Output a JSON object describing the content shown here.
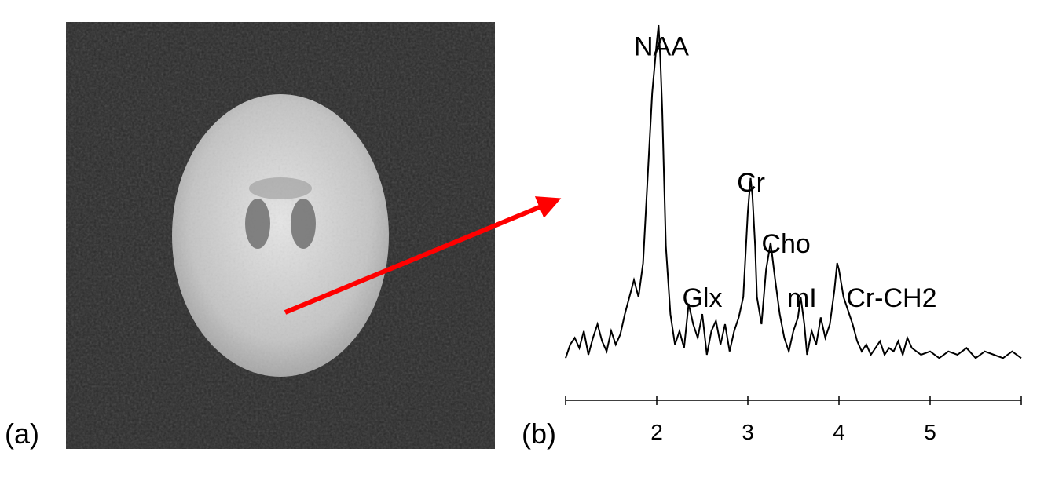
{
  "panels": {
    "a_label": "(a)",
    "b_label": "(b)"
  },
  "colors": {
    "arrow": "#ff0000",
    "spectrum": "#000000",
    "image_background": "#2a2a2a",
    "brain_tissue": "#d9d9d9"
  },
  "chart_data": {
    "type": "line",
    "title": "",
    "xlabel": "",
    "ylabel": "",
    "xlim": [
      1.0,
      6.0
    ],
    "x_ticks": [
      1,
      2,
      3,
      4,
      5,
      6
    ],
    "x_tick_labels": [
      "",
      "2",
      "3",
      "4",
      "5",
      ""
    ],
    "y_axis_visible": false,
    "grid": false,
    "series": [
      {
        "x": [
          1.0,
          1.05,
          1.1,
          1.15,
          1.2,
          1.25,
          1.3,
          1.35,
          1.4,
          1.45,
          1.5,
          1.55,
          1.6,
          1.65,
          1.7,
          1.75,
          1.8,
          1.85,
          1.9,
          1.95,
          2.0,
          2.02,
          2.04,
          2.06,
          2.08,
          2.1,
          2.15,
          2.2,
          2.25,
          2.3,
          2.35,
          2.4,
          2.45,
          2.5,
          2.55,
          2.6,
          2.65,
          2.7,
          2.75,
          2.8,
          2.85,
          2.9,
          2.95,
          3.0,
          3.03,
          3.05,
          3.08,
          3.1,
          3.15,
          3.2,
          3.25,
          3.3,
          3.35,
          3.4,
          3.45,
          3.5,
          3.55,
          3.58,
          3.62,
          3.65,
          3.7,
          3.75,
          3.8,
          3.85,
          3.9,
          3.95,
          3.98,
          4.0,
          4.05,
          4.1,
          4.15,
          4.2,
          4.25,
          4.3,
          4.35,
          4.4,
          4.45,
          4.5,
          4.55,
          4.6,
          4.65,
          4.7,
          4.75,
          4.8,
          4.9,
          5.0,
          5.1,
          5.2,
          5.3,
          5.4,
          5.5,
          5.6,
          5.7,
          5.8,
          5.9,
          6.0
        ],
        "y": [
          0.02,
          0.06,
          0.08,
          0.05,
          0.1,
          0.03,
          0.08,
          0.12,
          0.07,
          0.04,
          0.1,
          0.06,
          0.09,
          0.15,
          0.2,
          0.25,
          0.2,
          0.3,
          0.55,
          0.8,
          0.95,
          1.0,
          0.9,
          0.75,
          0.55,
          0.35,
          0.15,
          0.06,
          0.1,
          0.05,
          0.18,
          0.12,
          0.08,
          0.15,
          0.03,
          0.1,
          0.13,
          0.06,
          0.12,
          0.04,
          0.1,
          0.14,
          0.2,
          0.45,
          0.55,
          0.5,
          0.35,
          0.2,
          0.12,
          0.28,
          0.36,
          0.25,
          0.15,
          0.08,
          0.04,
          0.1,
          0.14,
          0.2,
          0.12,
          0.03,
          0.1,
          0.06,
          0.14,
          0.08,
          0.12,
          0.22,
          0.3,
          0.28,
          0.2,
          0.16,
          0.12,
          0.07,
          0.04,
          0.06,
          0.03,
          0.05,
          0.07,
          0.03,
          0.05,
          0.04,
          0.07,
          0.03,
          0.08,
          0.05,
          0.03,
          0.04,
          0.02,
          0.04,
          0.03,
          0.05,
          0.02,
          0.04,
          0.03,
          0.02,
          0.04,
          0.02
        ]
      }
    ],
    "annotations": [
      {
        "text": "NAA",
        "x": 1.75,
        "y": 0.98
      },
      {
        "text": "Glx",
        "x": 2.28,
        "y": 0.24
      },
      {
        "text": "Cr",
        "x": 2.88,
        "y": 0.58
      },
      {
        "text": "Cho",
        "x": 3.15,
        "y": 0.4
      },
      {
        "text": "mI",
        "x": 3.43,
        "y": 0.24
      },
      {
        "text": "Cr-CH2",
        "x": 4.08,
        "y": 0.24
      }
    ]
  }
}
